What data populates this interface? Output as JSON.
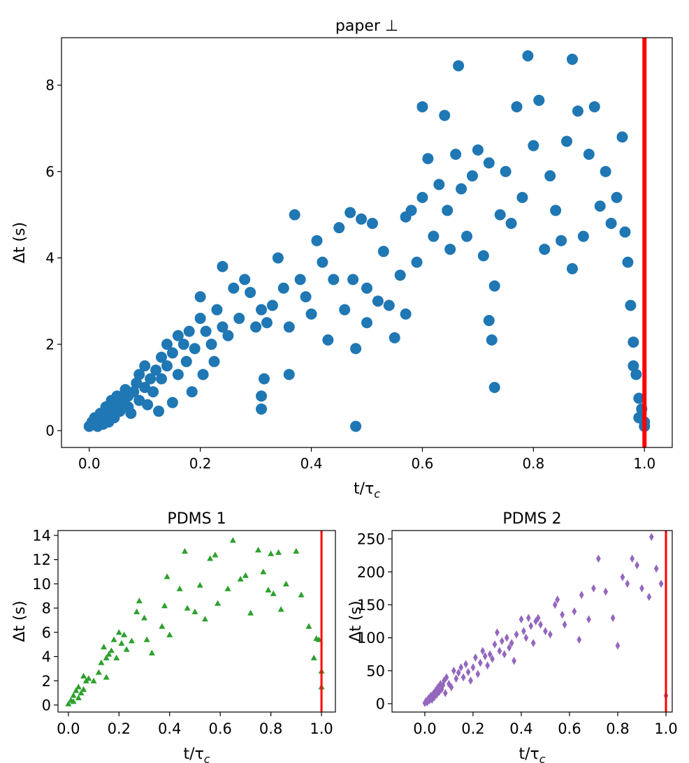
{
  "chart_data": [
    {
      "type": "scatter",
      "title": "paper ⊥",
      "xlabel": [
        "t/τ",
        "c"
      ],
      "ylabel": "Δt (s)",
      "marker": "circle",
      "color": "#1f77b4",
      "xlim": [
        -0.05,
        1.05
      ],
      "ylim": [
        -0.39,
        9.1
      ],
      "xticks": [
        {
          "value": 0,
          "label": "0.0"
        },
        0.2,
        0.4,
        0.6,
        0.8,
        {
          "value": 1,
          "label": "1.0"
        }
      ],
      "yticks": [
        0,
        2,
        4,
        6,
        8
      ],
      "vline": {
        "x": 1,
        "color": "#ff0000"
      },
      "x": [
        0,
        0.005,
        0.01,
        0.01,
        0.015,
        0.02,
        0.02,
        0.025,
        0.03,
        0.03,
        0.035,
        0.04,
        0.04,
        0.045,
        0.05,
        0.05,
        0.055,
        0.06,
        0.065,
        0.07,
        0.07,
        0.075,
        0.08,
        0.085,
        0.09,
        0.09,
        0.1,
        0.1,
        0.105,
        0.11,
        0.115,
        0.12,
        0.125,
        0.13,
        0.13,
        0.14,
        0.14,
        0.15,
        0.15,
        0.16,
        0.16,
        0.17,
        0.175,
        0.18,
        0.185,
        0.19,
        0.2,
        0.2,
        0.205,
        0.21,
        0.22,
        0.225,
        0.23,
        0.24,
        0.24,
        0.25,
        0.26,
        0.27,
        0.28,
        0.29,
        0.3,
        0.31,
        0.31,
        0.31,
        0.315,
        0.32,
        0.33,
        0.34,
        0.35,
        0.36,
        0.36,
        0.37,
        0.38,
        0.39,
        0.4,
        0.41,
        0.42,
        0.43,
        0.44,
        0.45,
        0.46,
        0.47,
        0.475,
        0.48,
        0.48,
        0.49,
        0.5,
        0.5,
        0.51,
        0.52,
        0.53,
        0.54,
        0.55,
        0.56,
        0.57,
        0.57,
        0.58,
        0.59,
        0.6,
        0.6,
        0.61,
        0.62,
        0.63,
        0.64,
        0.645,
        0.65,
        0.66,
        0.665,
        0.67,
        0.68,
        0.69,
        0.7,
        0.71,
        0.72,
        0.72,
        0.725,
        0.73,
        0.73,
        0.74,
        0.75,
        0.76,
        0.77,
        0.78,
        0.79,
        0.8,
        0.81,
        0.82,
        0.83,
        0.84,
        0.85,
        0.86,
        0.87,
        0.87,
        0.88,
        0.89,
        0.9,
        0.91,
        0.92,
        0.93,
        0.94,
        0.95,
        0.96,
        0.965,
        0.97,
        0.975,
        0.98,
        0.98,
        0.985,
        0.99,
        0.99,
        0.995,
        1,
        1
      ],
      "values": [
        0.1,
        0.2,
        0.15,
        0.3,
        0.1,
        0.25,
        0.4,
        0.15,
        0.35,
        0.55,
        0.2,
        0.5,
        0.7,
        0.3,
        0.6,
        0.8,
        0.45,
        0.7,
        0.95,
        0.55,
        0.8,
        0.4,
        0.9,
        1.1,
        0.7,
        1.3,
        1,
        1.5,
        0.6,
        1.2,
        0.9,
        1.4,
        0.45,
        1.7,
        1.2,
        2,
        1.5,
        1.8,
        0.65,
        2.2,
        1.3,
        2,
        1.6,
        2.3,
        0.9,
        1.9,
        2.6,
        3.1,
        1.3,
        2.3,
        2,
        1.6,
        2.8,
        3.8,
        2.4,
        2.2,
        3.3,
        2.6,
        3.5,
        3.2,
        2.4,
        2.8,
        0.5,
        0.8,
        1.2,
        2.5,
        2.9,
        4,
        3.3,
        2.4,
        1.3,
        5,
        3.5,
        3.1,
        2.7,
        4.4,
        3.9,
        2.1,
        3.5,
        4.7,
        2.8,
        5.05,
        3.5,
        1.9,
        0.1,
        4.9,
        2.5,
        3.3,
        4.8,
        3,
        4.15,
        2.9,
        2.15,
        3.6,
        4.95,
        2.7,
        5.1,
        3.9,
        7.5,
        5.4,
        6.3,
        4.5,
        5.7,
        7.3,
        5.1,
        4.2,
        6.4,
        8.45,
        5.6,
        4.5,
        5.9,
        6.5,
        4.05,
        6.2,
        2.55,
        2.1,
        1,
        3.35,
        5,
        6,
        4.8,
        7.5,
        5.4,
        8.68,
        6.6,
        7.65,
        4.2,
        5.9,
        5.1,
        4.4,
        6.7,
        8.6,
        3.75,
        7.4,
        4.5,
        6.4,
        7.5,
        5.2,
        6,
        4.8,
        5.4,
        6.8,
        4.6,
        3.9,
        2.9,
        2.05,
        1.5,
        1.3,
        0.75,
        0.3,
        0.5,
        0.1,
        0.2
      ]
    },
    {
      "type": "scatter",
      "title": "PDMS 1",
      "xlabel": [
        "t/τ",
        "c"
      ],
      "ylabel": "Δt (s)",
      "marker": "triangle",
      "color": "#2ca02c",
      "xlim": [
        -0.041,
        1.055
      ],
      "ylim": [
        -0.58,
        14.4
      ],
      "xticks": [
        {
          "value": 0,
          "label": "0.0"
        },
        0.2,
        0.4,
        0.6,
        0.8,
        {
          "value": 1,
          "label": "1.0"
        }
      ],
      "yticks": [
        0,
        2,
        4,
        6,
        8,
        10,
        12,
        14
      ],
      "vline": {
        "x": 1,
        "color": "#ff0000"
      },
      "x": [
        0,
        0.01,
        0.02,
        0.02,
        0.03,
        0.04,
        0.04,
        0.05,
        0.06,
        0.06,
        0.07,
        0.08,
        0.1,
        0.12,
        0.13,
        0.14,
        0.15,
        0.15,
        0.16,
        0.17,
        0.18,
        0.19,
        0.2,
        0.21,
        0.22,
        0.23,
        0.25,
        0.27,
        0.28,
        0.3,
        0.31,
        0.33,
        0.37,
        0.38,
        0.39,
        0.4,
        0.44,
        0.46,
        0.47,
        0.5,
        0.52,
        0.54,
        0.56,
        0.58,
        0.59,
        0.63,
        0.65,
        0.68,
        0.7,
        0.72,
        0.75,
        0.77,
        0.79,
        0.8,
        0.81,
        0.83,
        0.84,
        0.86,
        0.9,
        0.92,
        0.95,
        0.97,
        0.98,
        0.99,
        1,
        1
      ],
      "values": [
        0.1,
        0.4,
        0.8,
        0.3,
        1.2,
        0.6,
        1.5,
        1,
        2.4,
        1.3,
        2,
        2.2,
        2,
        2.7,
        3.5,
        4.8,
        3.9,
        2.3,
        4.2,
        4.5,
        5.4,
        3.9,
        6,
        5.1,
        5.8,
        4.6,
        5.3,
        7.7,
        8.6,
        7.2,
        5.4,
        4.3,
        6.5,
        8.2,
        10.6,
        5.8,
        9.6,
        12.7,
        8,
        7.7,
        9.9,
        7.1,
        12.1,
        12.4,
        8.4,
        9.6,
        13.6,
        10.4,
        10.7,
        7.6,
        12.8,
        11,
        9.5,
        12.5,
        9.2,
        12.6,
        7.9,
        10,
        12.7,
        9.1,
        6.5,
        3.9,
        5.5,
        5.4,
        2.8,
        1.5
      ]
    },
    {
      "type": "scatter",
      "title": "PDMS 2",
      "xlabel": [
        "t/τ",
        "c"
      ],
      "ylabel": "Δt (s)",
      "marker": "diamond",
      "color": "#9467bd",
      "xlim": [
        -0.136,
        1.026
      ],
      "ylim": [
        -12.7,
        262.7
      ],
      "xticks": [
        {
          "value": 0,
          "label": "0.0"
        },
        0.2,
        0.4,
        0.6,
        0.8,
        {
          "value": 1,
          "label": "1.0"
        }
      ],
      "yticks": [
        0,
        50,
        100,
        150,
        200,
        250
      ],
      "vline": {
        "x": 1,
        "color": "#ff0000"
      },
      "x": [
        0,
        0.005,
        0.01,
        0.015,
        0.02,
        0.025,
        0.03,
        0.035,
        0.04,
        0.045,
        0.05,
        0.055,
        0.06,
        0.065,
        0.07,
        0.075,
        0.08,
        0.085,
        0.09,
        0.1,
        0.11,
        0.12,
        0.13,
        0.14,
        0.15,
        0.16,
        0.17,
        0.18,
        0.19,
        0.2,
        0.21,
        0.22,
        0.23,
        0.24,
        0.25,
        0.26,
        0.27,
        0.28,
        0.29,
        0.3,
        0.31,
        0.32,
        0.33,
        0.34,
        0.35,
        0.36,
        0.37,
        0.38,
        0.4,
        0.41,
        0.42,
        0.43,
        0.44,
        0.45,
        0.46,
        0.47,
        0.48,
        0.5,
        0.52,
        0.54,
        0.55,
        0.57,
        0.58,
        0.62,
        0.64,
        0.65,
        0.68,
        0.7,
        0.72,
        0.75,
        0.78,
        0.8,
        0.82,
        0.84,
        0.86,
        0.88,
        0.9,
        0.93,
        0.94,
        0.96,
        0.98,
        1
      ],
      "values": [
        1,
        4,
        2,
        8,
        5,
        12,
        6,
        15,
        10,
        20,
        14,
        25,
        18,
        30,
        22,
        28,
        35,
        16,
        40,
        30,
        25,
        50,
        38,
        47,
        55,
        40,
        60,
        48,
        35,
        55,
        70,
        45,
        62,
        80,
        72,
        58,
        75,
        68,
        90,
        108,
        80,
        95,
        75,
        100,
        85,
        92,
        65,
        105,
        128,
        110,
        100,
        130,
        118,
        92,
        125,
        130,
        120,
        110,
        105,
        150,
        158,
        135,
        120,
        140,
        97,
        165,
        128,
        175,
        220,
        170,
        130,
        88,
        192,
        182,
        220,
        210,
        175,
        162,
        253,
        205,
        182,
        12
      ]
    }
  ]
}
